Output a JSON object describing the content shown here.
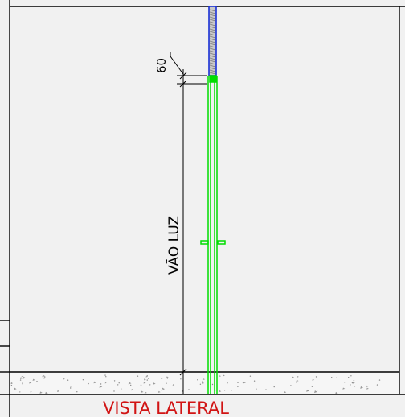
{
  "drawing": {
    "dimension_label": "60",
    "span_label": "VÃO LUZ",
    "view_caption": "VISTA LATERAL"
  },
  "colors": {
    "background": "#f1f1f1",
    "frame_lines": "#000000",
    "profile_green": "#00dd00",
    "header_blue": "#1a2fd6",
    "caption_red": "#d11414",
    "floor_pattern": "#9a9a9a"
  }
}
